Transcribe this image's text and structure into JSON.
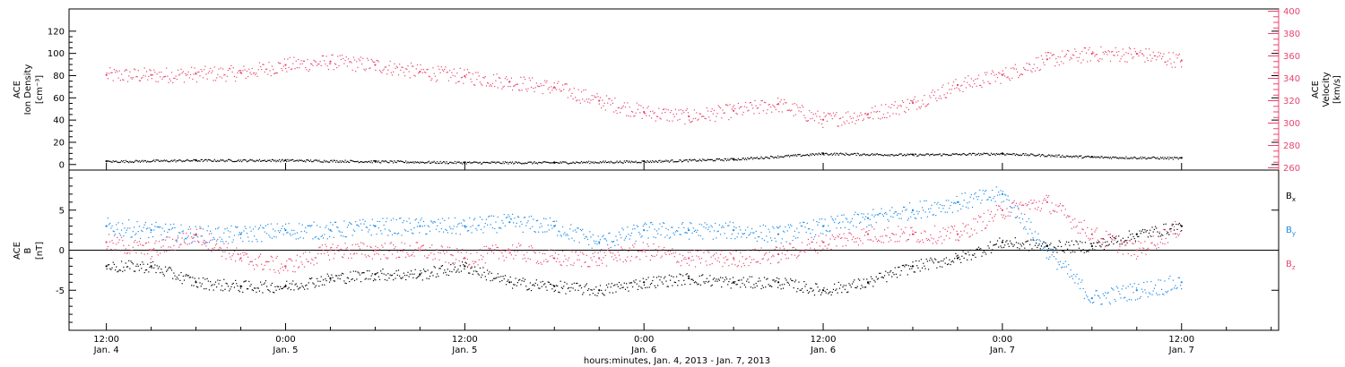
{
  "chart_data": [
    {
      "type": "scatter",
      "panel": "top",
      "ylabel_left": [
        "ACE",
        "Ion Density",
        "[cm⁻³]"
      ],
      "ylabel_right": [
        "ACE",
        "Velocity",
        "[km/s]"
      ],
      "y_left_ticks": [
        "0",
        "20",
        "40",
        "60",
        "80",
        "100",
        "120"
      ],
      "y_right_ticks": [
        "260",
        "280",
        "300",
        "320",
        "340",
        "360",
        "380",
        "400"
      ],
      "y_left_range": [
        -5,
        140
      ],
      "y_right_range": [
        258,
        402
      ],
      "series": [
        {
          "name": "Ion Density",
          "color": "#000000",
          "axis": "left",
          "x": [
            0,
            6,
            12,
            18,
            24,
            30,
            36,
            42,
            48,
            54,
            60,
            66,
            72
          ],
          "y": [
            3,
            4,
            4,
            3,
            2,
            2,
            3,
            5,
            10,
            9,
            10,
            7,
            6
          ]
        },
        {
          "name": "Velocity",
          "color": "#e8456f",
          "axis": "right",
          "x": [
            0,
            3,
            6,
            9,
            12,
            15,
            18,
            21,
            24,
            27,
            30,
            33,
            36,
            39,
            42,
            45,
            48,
            51,
            54,
            57,
            60,
            63,
            66,
            69,
            72
          ],
          "y": [
            343,
            343,
            344,
            345,
            352,
            355,
            352,
            346,
            342,
            337,
            332,
            320,
            310,
            306,
            311,
            317,
            303,
            308,
            318,
            334,
            343,
            357,
            362,
            362,
            356
          ]
        }
      ]
    },
    {
      "type": "scatter",
      "panel": "bottom",
      "ylabel": [
        "ACE",
        "B",
        "[nT]"
      ],
      "y_ticks": [
        "-5",
        "0",
        "5"
      ],
      "y_range": [
        -10,
        10
      ],
      "legend": [
        {
          "label": "B",
          "sub": "x",
          "color": "#000000"
        },
        {
          "label": "B",
          "sub": "y",
          "color": "#1a8ae8"
        },
        {
          "label": "B",
          "sub": "z",
          "color": "#e8456f"
        }
      ],
      "series": [
        {
          "name": "Bx",
          "color": "#000000",
          "x": [
            0,
            3,
            6,
            9,
            12,
            15,
            18,
            21,
            24,
            27,
            30,
            33,
            36,
            39,
            42,
            45,
            48,
            51,
            54,
            57,
            60,
            63,
            66,
            69,
            72
          ],
          "y": [
            -2,
            -2,
            -4,
            -4.5,
            -4.5,
            -3.5,
            -3,
            -3,
            -2,
            -4,
            -4.5,
            -5,
            -4,
            -3.5,
            -4,
            -4,
            -5,
            -4,
            -2,
            -1,
            1,
            0.5,
            0.5,
            2,
            3
          ]
        },
        {
          "name": "By",
          "color": "#1a8ae8",
          "x": [
            0,
            3,
            6,
            9,
            12,
            15,
            18,
            21,
            24,
            27,
            30,
            33,
            36,
            39,
            42,
            45,
            48,
            51,
            54,
            57,
            60,
            63,
            66,
            69,
            72
          ],
          "y": [
            3,
            2.5,
            2,
            2,
            2.5,
            2.5,
            3,
            3,
            3,
            3.5,
            3,
            1,
            2.5,
            2.5,
            2.5,
            2,
            3,
            4,
            5,
            6,
            7,
            0,
            -6,
            -5,
            -4
          ]
        },
        {
          "name": "Bz",
          "color": "#e8456f",
          "x": [
            0,
            3,
            6,
            9,
            12,
            15,
            18,
            21,
            24,
            27,
            30,
            33,
            36,
            39,
            42,
            45,
            48,
            51,
            54,
            57,
            60,
            63,
            66,
            69,
            72
          ],
          "y": [
            1,
            0,
            2,
            -1,
            -2,
            0,
            0,
            0,
            -1,
            0,
            -1,
            -1,
            0,
            -1,
            -1,
            -0.5,
            1,
            2,
            2,
            2,
            5,
            6,
            2,
            0,
            3
          ]
        }
      ]
    }
  ],
  "x_axis": {
    "title": "hours:minutes, Jan. 4, 2013 - Jan. 7, 2013",
    "range_hours": [
      -2.5,
      78.5
    ],
    "ticks": [
      {
        "hour": 0,
        "time": "12:00",
        "date": "Jan. 4"
      },
      {
        "hour": 12,
        "time": "0:00",
        "date": "Jan. 5"
      },
      {
        "hour": 24,
        "time": "12:00",
        "date": "Jan. 5"
      },
      {
        "hour": 36,
        "time": "0:00",
        "date": "Jan. 6"
      },
      {
        "hour": 48,
        "time": "12:00",
        "date": "Jan. 6"
      },
      {
        "hour": 60,
        "time": "0:00",
        "date": "Jan. 7"
      },
      {
        "hour": 72,
        "time": "12:00",
        "date": "Jan. 7"
      }
    ]
  },
  "colors": {
    "black": "#000000",
    "pink": "#e8456f",
    "blue": "#1a8ae8"
  }
}
